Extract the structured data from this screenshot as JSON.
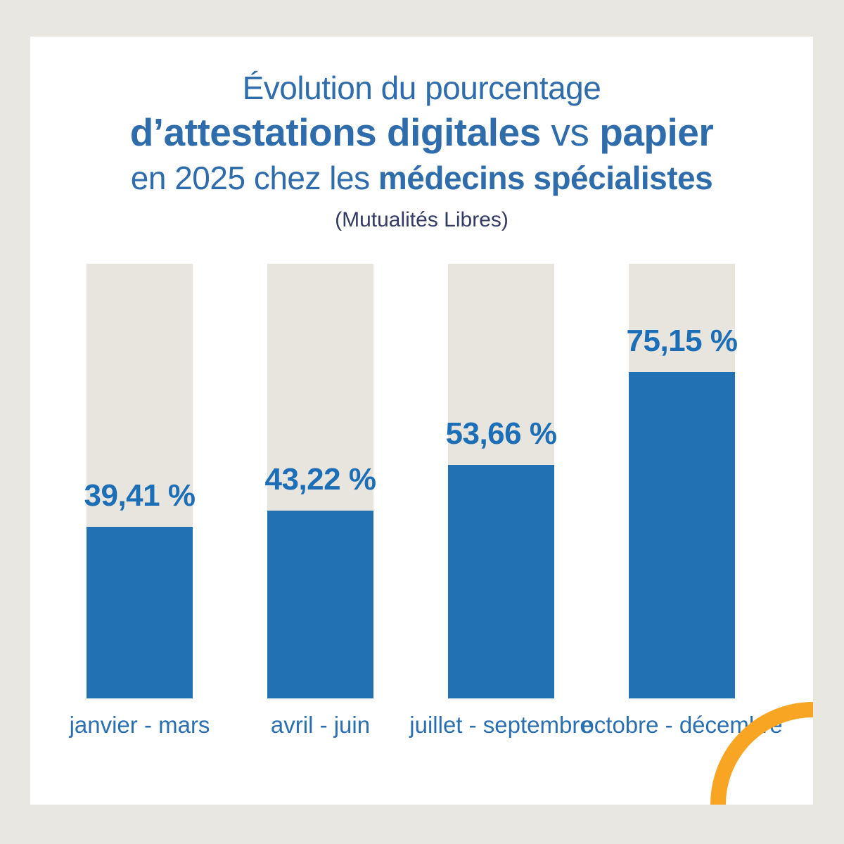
{
  "colors": {
    "page-bg": "#E9E7E2",
    "card-bg": "#FFFFFF",
    "bar-blue": "#2271B3",
    "track-gray": "#E8E5DF",
    "title-blue": "#2E6CAC",
    "value-blue": "#1C6FB6",
    "category-blue": "#2A6FB2",
    "subtitle-navy": "#333A63",
    "arc-orange": "#F7A522"
  },
  "title": {
    "line1": "Évolution du pourcentage",
    "line2_bold1": "d’attestations digitales",
    "line2_regular": " vs ",
    "line2_bold2": "papier",
    "line3_regular": "en 2025 chez les ",
    "line3_bold": "médecins spécialistes",
    "subtitle": "(Mutualités Libres)"
  },
  "chart_data": {
    "type": "bar",
    "title": "Évolution du pourcentage d’attestations digitales vs papier en 2025 chez les médecins spécialistes",
    "subtitle": "(Mutualités Libres)",
    "categories": [
      "janvier - mars",
      "avril - juin",
      "juillet - septembre",
      "octobre - décembre"
    ],
    "values": [
      39.41,
      43.22,
      53.66,
      75.15
    ],
    "value_labels": [
      "39,41 %",
      "43,22 %",
      "53,66 %",
      "75,15 %"
    ],
    "series_name": "attestations digitales (%)",
    "track_meaning": "papier (reste jusqu’à 100 %)",
    "ylim": [
      0,
      100
    ],
    "grid": false,
    "legend": false,
    "bar_color": "#2271B3",
    "track_color": "#E8E5DF"
  }
}
